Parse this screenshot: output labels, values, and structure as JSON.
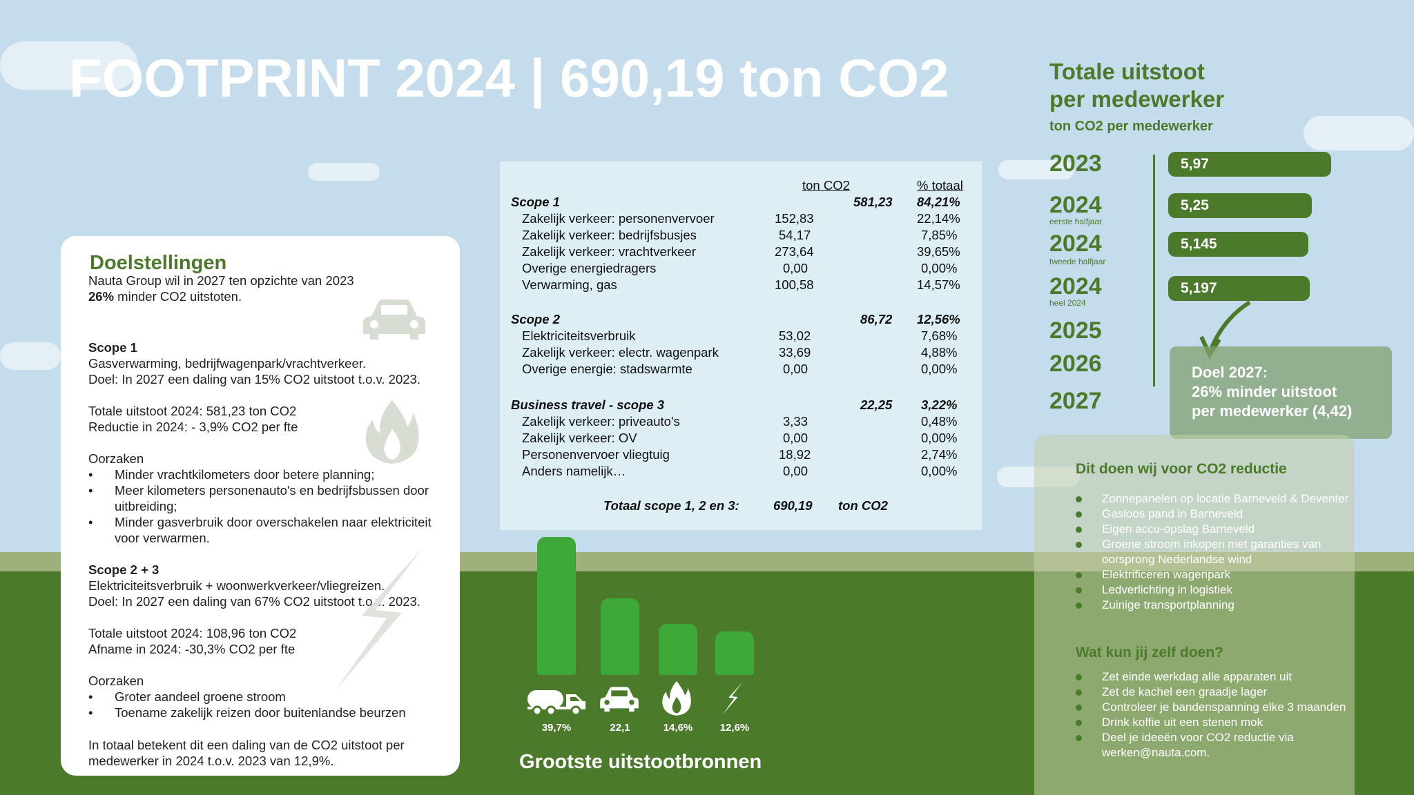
{
  "title": "FOOTPRINT 2024  |  690,19 ton CO2",
  "goals": {
    "heading": "Doelstellingen",
    "intro_line1": "Nauta Group wil in 2027 ten opzichte van 2023",
    "intro_bold": "26%",
    "intro_line2": " minder CO2 uitstoten.",
    "scope1": {
      "heading": "Scope 1",
      "line1": "Gasverwarming, bedrijfwagenpark/vrachtverkeer.",
      "line2": "Doel: In 2027 een daling van 15% CO2 uitstoot t.o.v. 2023.",
      "total": "Totale uitstoot 2024: 581,23 ton CO2",
      "reduction": "Reductie in 2024: - 3,9% CO2 per fte",
      "causes_heading": "Oorzaken",
      "causes": [
        "Minder vrachtkilometers door betere planning;",
        "Meer kilometers personenauto's en bedrijfsbussen door uitbreiding;",
        "Minder gasverbruik door overschakelen naar elektriciteit voor verwarmen."
      ]
    },
    "scope23": {
      "heading": "Scope  2 + 3",
      "line1": "Elektriciteitsverbruik + woonwerkverkeer/vliegreizen.",
      "line2": "Doel: In 2027 een daling van 67% CO2 uitstoot t.o.v. 2023.",
      "total": "Totale uitstoot 2024: 108,96 ton CO2",
      "reduction": "Afname in 2024: -30,3% CO2 per fte",
      "causes_heading": "Oorzaken",
      "causes": [
        "Groter aandeel groene stroom",
        "Toename zakelijk reizen door buitenlandse beurzen"
      ]
    },
    "summary": "In totaal betekent dit een daling van de CO2 uitstoot per medewerker in 2024 t.o.v. 2023 van 12,9%."
  },
  "table": {
    "col_ton": "ton CO2",
    "col_pct": "% totaal",
    "scope1": {
      "label": "Scope 1",
      "total": "581,23",
      "pct": "84,21%"
    },
    "scope1_rows": [
      {
        "label": "Zakelijk verkeer: personenvervoer",
        "value": "152,83",
        "pct": "22,14%"
      },
      {
        "label": "Zakelijk verkeer: bedrijfsbusjes",
        "value": "54,17",
        "pct": "7,85%"
      },
      {
        "label": "Zakelijk verkeer: vrachtverkeer",
        "value": "273,64",
        "pct": "39,65%"
      },
      {
        "label": "Overige energiedragers",
        "value": "0,00",
        "pct": "0,00%"
      },
      {
        "label": "Verwarming, gas",
        "value": "100,58",
        "pct": "14,57%"
      }
    ],
    "scope2": {
      "label": "Scope 2",
      "total": "86,72",
      "pct": "12,56%"
    },
    "scope2_rows": [
      {
        "label": "Elektriciteitsverbruik",
        "value": "53,02",
        "pct": "7,68%"
      },
      {
        "label": "Zakelijk verkeer: electr. wagenpark",
        "value": "33,69",
        "pct": "4,88%"
      },
      {
        "label": "Overige energie: stadswarmte",
        "value": "0,00",
        "pct": "0,00%"
      }
    ],
    "scope3": {
      "label": "Business travel - scope 3",
      "total": "22,25",
      "pct": "3,22%"
    },
    "scope3_rows": [
      {
        "label": "Zakelijk verkeer: priveauto's",
        "value": "3,33",
        "pct": "0,48%"
      },
      {
        "label": "Zakelijk verkeer: OV",
        "value": "0,00",
        "pct": "0,00%"
      },
      {
        "label": "Personenvervoer vliegtuig",
        "value": "18,92",
        "pct": "2,74%"
      },
      {
        "label": "Anders namelijk…",
        "value": "0,00",
        "pct": "0,00%"
      }
    ],
    "total_label": "Totaal scope 1, 2 en 3:",
    "total_value": "690,19",
    "total_unit": "ton CO2"
  },
  "chart_data": {
    "type": "bar",
    "title": "Grootste uitstootbronnen",
    "categories": [
      "truck-icon",
      "car-icon",
      "flame-icon",
      "lightning-icon"
    ],
    "labels": [
      "39,7%",
      "22,1",
      "14,6%",
      "12,6%"
    ],
    "values": [
      39.7,
      22.1,
      14.6,
      12.6
    ],
    "color": "#3ea838"
  },
  "per_employee": {
    "title_line1": "Totale uitstoot",
    "title_line2": "per medewerker",
    "subtitle": "ton CO2 per medewerker",
    "years": [
      {
        "year": "2023",
        "sub": "",
        "value": "5,97",
        "num": 5.97
      },
      {
        "year": "2024",
        "sub": "eerste halfjaar",
        "value": "5,25",
        "num": 5.25
      },
      {
        "year": "2024",
        "sub": "tweede halfjaar",
        "value": "5,145",
        "num": 5.145
      },
      {
        "year": "2024",
        "sub": "heel 2024",
        "value": "5,197",
        "num": 5.197
      },
      {
        "year": "2025",
        "sub": ""
      },
      {
        "year": "2026",
        "sub": ""
      },
      {
        "year": "2027",
        "sub": ""
      }
    ],
    "goal_line1": "Doel 2027:",
    "goal_line2": "26% minder uitstoot",
    "goal_line3": "per medewerker (4,42)"
  },
  "actions": {
    "heading1": "Dit doen wij voor CO2 reductie",
    "list1": [
      "Zonnepanelen op locatie Barneveld & Deventer",
      "Gasloos pand in Barneveld",
      "Eigen accu-opslag Barneveld",
      "Groene stroom inkopen met garanties van oorsprong Nederlandse wind",
      "Elektrificeren wagenpark",
      "Ledverlichting in logistiek",
      "Zuinige transportplanning"
    ],
    "heading2": "Wat kun jij zelf doen?",
    "list2": [
      "Zet einde werkdag alle apparaten uit",
      "Zet de kachel een graadje lager",
      "Controleer je bandenspanning elke 3 maanden",
      "Drink koffie uit een stenen mok",
      "Deel je ideeën voor CO2 reductie via werken@nauta.com."
    ]
  },
  "colors": {
    "green": "#4b7a2a",
    "bar_green": "#3ea838",
    "sky": "#c4dcec"
  }
}
